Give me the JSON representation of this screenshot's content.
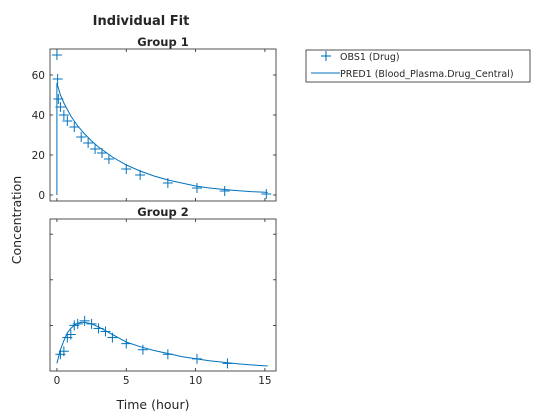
{
  "figure": {
    "title": "Individual Fit",
    "xlabel": "Time (hour)",
    "ylabel": "Concentration"
  },
  "legend": {
    "placement": "right-outside",
    "entries": [
      {
        "label": "OBS1 (Drug)",
        "marker": "plus"
      },
      {
        "label": "PRED1 (Blood_Plasma.Drug_Central)",
        "marker": "line"
      }
    ]
  },
  "colors": {
    "series": "#0072bd",
    "axis": "#262626"
  },
  "chart_data": [
    {
      "type": "scatter",
      "title": "Group 1",
      "xlim": [
        -0.5,
        15.8
      ],
      "ylim": [
        -3,
        73
      ],
      "yticks": [
        0,
        20,
        40,
        60
      ],
      "xticks": [
        0,
        5,
        10,
        15
      ],
      "show_xticklabels": false,
      "show_yticklabels": true,
      "series": [
        {
          "name": "OBS1 (Drug)",
          "kind": "points",
          "x": [
            0,
            0.05,
            0.1,
            0.25,
            0.5,
            0.75,
            1.25,
            1.75,
            2.25,
            2.75,
            3.25,
            3.75,
            5,
            6,
            8,
            10.1,
            12.1,
            15.1
          ],
          "y": [
            70,
            58,
            48,
            44,
            40,
            37,
            34,
            29,
            26,
            23,
            21,
            18,
            13,
            10,
            6,
            3.5,
            2,
            0.5
          ]
        },
        {
          "name": "PRED1 (Blood_Plasma.Drug_Central)",
          "kind": "line",
          "x": [
            0,
            0,
            0.25,
            0.5,
            1,
            1.5,
            2,
            2.5,
            3,
            3.5,
            4,
            5,
            6,
            7,
            8,
            9,
            10,
            11,
            12,
            13,
            14,
            15.2
          ],
          "y": [
            0,
            56,
            50,
            46,
            39.5,
            34.5,
            30.5,
            27,
            24,
            21.5,
            19,
            15,
            12,
            9.5,
            7.5,
            6,
            4.5,
            3.5,
            2.8,
            2.2,
            1.7,
            1.3
          ]
        }
      ]
    },
    {
      "type": "scatter",
      "title": "Group 2",
      "xlim": [
        -0.5,
        15.8
      ],
      "ylim": [
        0,
        1
      ],
      "xticks": [
        0,
        5,
        10,
        15
      ],
      "show_xticklabels": true,
      "show_yticklabels": false,
      "yticks_rel": [
        0.3,
        0.6,
        0.9
      ],
      "series": [
        {
          "name": "OBS1 (Drug)",
          "kind": "points",
          "x": [
            0.25,
            0.5,
            0.75,
            1,
            1.25,
            1.5,
            2,
            2.5,
            3,
            3.5,
            4,
            5,
            6.2,
            8,
            10.1,
            12.3
          ],
          "y": [
            0.11,
            0.13,
            0.22,
            0.24,
            0.3,
            0.31,
            0.33,
            0.31,
            0.28,
            0.26,
            0.22,
            0.18,
            0.14,
            0.11,
            0.08,
            0.05
          ]
        },
        {
          "name": "PRED1 (Blood_Plasma.Drug_Central)",
          "kind": "line",
          "x": [
            0,
            0.25,
            0.5,
            0.75,
            1,
            1.25,
            1.5,
            1.75,
            2,
            2.5,
            3,
            3.5,
            4,
            5,
            6,
            7,
            8,
            9,
            10,
            11,
            12,
            13,
            14,
            15.2
          ],
          "y": [
            0.05,
            0.14,
            0.2,
            0.25,
            0.28,
            0.3,
            0.315,
            0.32,
            0.32,
            0.31,
            0.29,
            0.265,
            0.24,
            0.19,
            0.16,
            0.135,
            0.115,
            0.095,
            0.08,
            0.068,
            0.057,
            0.048,
            0.04,
            0.033
          ]
        }
      ]
    }
  ]
}
